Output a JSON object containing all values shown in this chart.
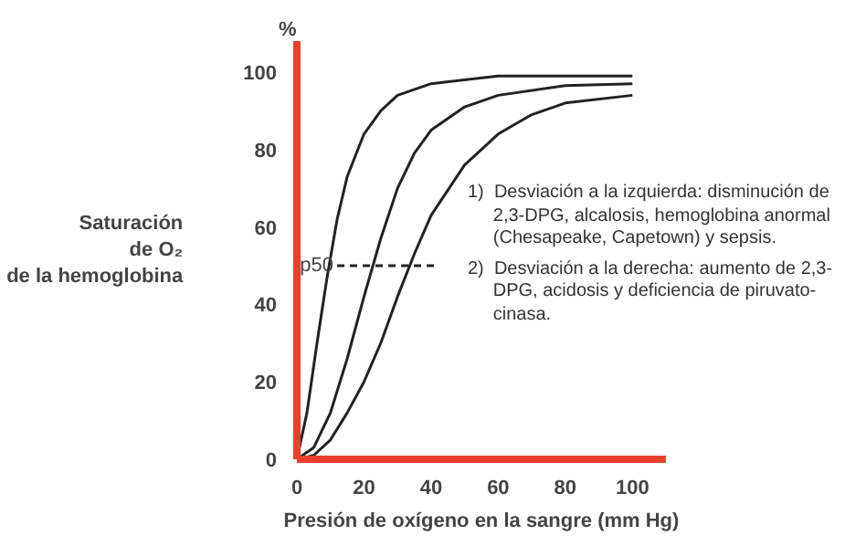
{
  "chart_data": {
    "type": "line",
    "xlabel": "Presión de oxígeno en la sangre (mm Hg)",
    "ylabel": "Saturación\nde O₂\nde la hemoglobina",
    "xlim": [
      0,
      110
    ],
    "ylim": [
      0,
      108
    ],
    "xticks": [
      0,
      20,
      40,
      60,
      80,
      100
    ],
    "yticks": [
      0,
      20,
      40,
      60,
      80,
      100
    ],
    "grid": false,
    "marker": "none",
    "line_style": "solid",
    "series": [
      {
        "color": "#222222",
        "x": [
          0,
          3,
          6,
          9,
          12,
          15,
          20,
          25,
          30,
          40,
          60,
          100
        ],
        "values": [
          0,
          12,
          30,
          47,
          62,
          73,
          84,
          90,
          94,
          97,
          99,
          99
        ]
      },
      {
        "color": "#222222",
        "x": [
          0,
          5,
          10,
          15,
          20,
          25,
          30,
          35,
          40,
          50,
          60,
          80,
          100
        ],
        "values": [
          0,
          3,
          12,
          26,
          42,
          57,
          70,
          79,
          85,
          91,
          94,
          96.5,
          97
        ]
      },
      {
        "color": "#222222",
        "x": [
          0,
          5,
          10,
          15,
          20,
          25,
          30,
          35,
          40,
          50,
          60,
          70,
          80,
          100
        ],
        "values": [
          0,
          1,
          5,
          12,
          20,
          30,
          42,
          53,
          63,
          76,
          84,
          89,
          92,
          94
        ]
      },
      {
        "name": "p50",
        "color": "#222222",
        "line_style": "dashed",
        "x": [
          12,
          41
        ],
        "values": [
          50,
          50
        ]
      }
    ],
    "annotations": [
      "%",
      "1)  Desviación a la izquierda: disminución de\n     2,3-DPG, alcalosis, hemoglobina anormal\n     (Chesapeake, Capetown) y sepsis.",
      "2)  Desviación a la derecha: aumento de 2,3-\n     DPG, acidosis y deficiencia de piruvato-\n     cinasa."
    ]
  }
}
